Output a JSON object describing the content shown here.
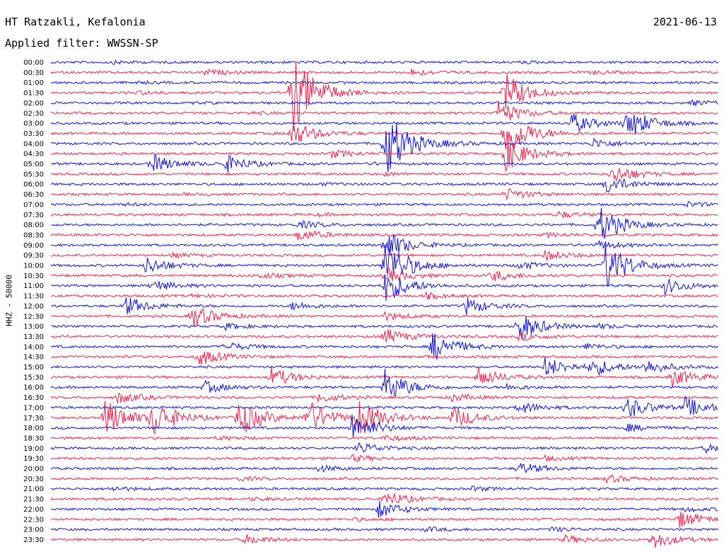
{
  "header": {
    "station": "HT Ratzakli, Kefalonia",
    "filter": "Applied filter: WWSSN-SP",
    "date": "2021-06-13"
  },
  "axis": {
    "ylabel": "HHZ - 50000"
  },
  "colors": {
    "odd_trace": "#1010d8",
    "even_trace": "#f0204c"
  },
  "chart_data": {
    "type": "line",
    "title": "HT Ratzakli, Kefalonia",
    "subtitle": "Applied filter: WWSSN-SP",
    "ylabel": "HHZ - 50000",
    "xlabel": "",
    "grid": false,
    "traces": [
      {
        "label": "00:00",
        "color": "blue",
        "events": [
          [
            0.09,
            0.12
          ],
          [
            0.3,
            0.06
          ],
          [
            0.7,
            0.08
          ]
        ]
      },
      {
        "label": "00:30",
        "color": "red",
        "events": [
          [
            0.23,
            0.25
          ],
          [
            0.54,
            0.3
          ],
          [
            0.81,
            0.15
          ]
        ]
      },
      {
        "label": "01:00",
        "color": "blue",
        "events": [
          [
            0.12,
            0.08
          ],
          [
            0.6,
            0.06
          ]
        ]
      },
      {
        "label": "01:30",
        "color": "red",
        "events": [
          [
            0.13,
            0.15
          ],
          [
            0.36,
            4.5
          ],
          [
            0.68,
            2.0
          ]
        ]
      },
      {
        "label": "02:00",
        "color": "blue",
        "events": [
          [
            0.21,
            0.06
          ],
          [
            0.96,
            0.25
          ]
        ]
      },
      {
        "label": "02:30",
        "color": "red",
        "events": [
          [
            0.3,
            0.1
          ],
          [
            0.67,
            1.2
          ]
        ]
      },
      {
        "label": "03:00",
        "color": "blue",
        "events": [
          [
            0.78,
            1.0
          ],
          [
            0.86,
            1.0
          ],
          [
            0.87,
            0.6
          ]
        ]
      },
      {
        "label": "03:30",
        "color": "red",
        "events": [
          [
            0.36,
            1.3
          ],
          [
            0.68,
            2.6
          ],
          [
            0.33,
            0.06
          ]
        ]
      },
      {
        "label": "04:00",
        "color": "blue",
        "events": [
          [
            0.5,
            3.8
          ],
          [
            0.59,
            0.1
          ],
          [
            0.81,
            0.5
          ]
        ]
      },
      {
        "label": "04:30",
        "color": "red",
        "events": [
          [
            0.42,
            0.4
          ],
          [
            0.68,
            1.8
          ]
        ]
      },
      {
        "label": "05:00",
        "color": "blue",
        "events": [
          [
            0.15,
            1.0
          ],
          [
            0.26,
            0.9
          ],
          [
            0.48,
            0.1
          ]
        ]
      },
      {
        "label": "05:30",
        "color": "red",
        "events": [
          [
            0.84,
            1.0
          ],
          [
            0.5,
            0.15
          ]
        ]
      },
      {
        "label": "06:00",
        "color": "blue",
        "events": [
          [
            0.4,
            0.1
          ],
          [
            0.83,
            1.0
          ]
        ]
      },
      {
        "label": "06:30",
        "color": "red",
        "events": [
          [
            0.68,
            0.6
          ],
          [
            0.2,
            0.06
          ]
        ]
      },
      {
        "label": "07:00",
        "color": "blue",
        "events": [
          [
            0.11,
            0.1
          ],
          [
            0.95,
            0.25
          ]
        ]
      },
      {
        "label": "07:30",
        "color": "red",
        "events": [
          [
            0.76,
            0.3
          ],
          [
            0.4,
            0.1
          ]
        ]
      },
      {
        "label": "08:00",
        "color": "blue",
        "events": [
          [
            0.37,
            0.4
          ],
          [
            0.82,
            2.0
          ]
        ]
      },
      {
        "label": "08:30",
        "color": "red",
        "events": [
          [
            0.37,
            0.6
          ],
          [
            0.74,
            0.2
          ]
        ]
      },
      {
        "label": "09:00",
        "color": "blue",
        "events": [
          [
            0.5,
            1.5
          ],
          [
            0.82,
            0.4
          ]
        ]
      },
      {
        "label": "09:30",
        "color": "red",
        "events": [
          [
            0.18,
            0.2
          ],
          [
            0.74,
            0.5
          ]
        ]
      },
      {
        "label": "10:00",
        "color": "blue",
        "events": [
          [
            0.14,
            0.9
          ],
          [
            0.5,
            2.8
          ],
          [
            0.83,
            2.6
          ],
          [
            0.7,
            0.4
          ]
        ]
      },
      {
        "label": "10:30",
        "color": "red",
        "events": [
          [
            0.5,
            0.8
          ],
          [
            0.66,
            0.6
          ],
          [
            0.31,
            0.3
          ]
        ]
      },
      {
        "label": "11:00",
        "color": "blue",
        "events": [
          [
            0.15,
            0.6
          ],
          [
            0.5,
            1.8
          ],
          [
            0.92,
            0.8
          ]
        ]
      },
      {
        "label": "11:30",
        "color": "red",
        "events": [
          [
            0.56,
            0.3
          ],
          [
            0.21,
            0.15
          ]
        ]
      },
      {
        "label": "12:00",
        "color": "blue",
        "events": [
          [
            0.11,
            1.0
          ],
          [
            0.36,
            0.4
          ],
          [
            0.62,
            0.9
          ]
        ]
      },
      {
        "label": "12:30",
        "color": "red",
        "events": [
          [
            0.21,
            1.2
          ],
          [
            0.5,
            0.4
          ]
        ]
      },
      {
        "label": "13:00",
        "color": "blue",
        "events": [
          [
            0.7,
            1.5
          ],
          [
            0.26,
            0.3
          ],
          [
            0.82,
            0.2
          ]
        ]
      },
      {
        "label": "13:30",
        "color": "red",
        "events": [
          [
            0.5,
            0.8
          ],
          [
            0.7,
            0.4
          ]
        ]
      },
      {
        "label": "14:00",
        "color": "blue",
        "events": [
          [
            0.57,
            1.6
          ],
          [
            0.26,
            0.5
          ],
          [
            0.8,
            0.3
          ]
        ]
      },
      {
        "label": "14:30",
        "color": "red",
        "events": [
          [
            0.22,
            0.9
          ],
          [
            0.56,
            0.1
          ]
        ]
      },
      {
        "label": "15:00",
        "color": "blue",
        "events": [
          [
            0.74,
            1.0
          ],
          [
            0.81,
            0.9
          ],
          [
            0.89,
            0.7
          ]
        ]
      },
      {
        "label": "15:30",
        "color": "red",
        "events": [
          [
            0.33,
            1.0
          ],
          [
            0.64,
            1.0
          ],
          [
            0.93,
            0.9
          ]
        ]
      },
      {
        "label": "16:00",
        "color": "blue",
        "events": [
          [
            0.23,
            0.6
          ],
          [
            0.5,
            1.8
          ],
          [
            0.68,
            0.3
          ]
        ]
      },
      {
        "label": "16:30",
        "color": "red",
        "events": [
          [
            0.1,
            0.6
          ],
          [
            0.4,
            0.5
          ],
          [
            0.6,
            0.4
          ]
        ]
      },
      {
        "label": "17:00",
        "color": "blue",
        "events": [
          [
            0.7,
            0.6
          ],
          [
            0.86,
            1.2
          ],
          [
            0.95,
            1.0
          ]
        ]
      },
      {
        "label": "17:30",
        "color": "red",
        "events": [
          [
            0.08,
            2.0
          ],
          [
            0.15,
            2.0
          ],
          [
            0.28,
            2.0
          ],
          [
            0.38,
            2.0
          ],
          [
            0.46,
            2.0
          ],
          [
            0.6,
            1.2
          ]
        ]
      },
      {
        "label": "18:00",
        "color": "blue",
        "events": [
          [
            0.45,
            1.6
          ],
          [
            0.86,
            0.4
          ]
        ]
      },
      {
        "label": "18:30",
        "color": "red",
        "events": [
          [
            0.25,
            0.2
          ],
          [
            0.5,
            0.3
          ]
        ]
      },
      {
        "label": "19:00",
        "color": "blue",
        "events": [
          [
            0.46,
            0.6
          ],
          [
            0.98,
            0.4
          ]
        ]
      },
      {
        "label": "19:30",
        "color": "red",
        "events": [
          [
            0.45,
            0.3
          ],
          [
            0.74,
            0.2
          ]
        ]
      },
      {
        "label": "20:00",
        "color": "blue",
        "events": [
          [
            0.7,
            0.6
          ],
          [
            0.4,
            0.3
          ]
        ]
      },
      {
        "label": "20:30",
        "color": "red",
        "events": [
          [
            0.83,
            0.4
          ],
          [
            0.28,
            0.2
          ]
        ]
      },
      {
        "label": "21:00",
        "color": "blue",
        "events": [
          [
            0.09,
            0.2
          ],
          [
            0.63,
            0.2
          ]
        ]
      },
      {
        "label": "21:30",
        "color": "red",
        "events": [
          [
            0.5,
            0.8
          ],
          [
            0.3,
            0.15
          ]
        ]
      },
      {
        "label": "22:00",
        "color": "blue",
        "events": [
          [
            0.49,
            0.9
          ],
          [
            0.95,
            0.2
          ]
        ]
      },
      {
        "label": "22:30",
        "color": "red",
        "events": [
          [
            0.94,
            0.9
          ],
          [
            0.45,
            0.15
          ]
        ]
      },
      {
        "label": "23:00",
        "color": "blue",
        "events": [
          [
            0.56,
            0.2
          ],
          [
            0.75,
            0.2
          ]
        ]
      },
      {
        "label": "23:30",
        "color": "red",
        "events": [
          [
            0.29,
            0.5
          ],
          [
            0.77,
            0.4
          ],
          [
            0.9,
            0.9
          ]
        ]
      }
    ]
  }
}
